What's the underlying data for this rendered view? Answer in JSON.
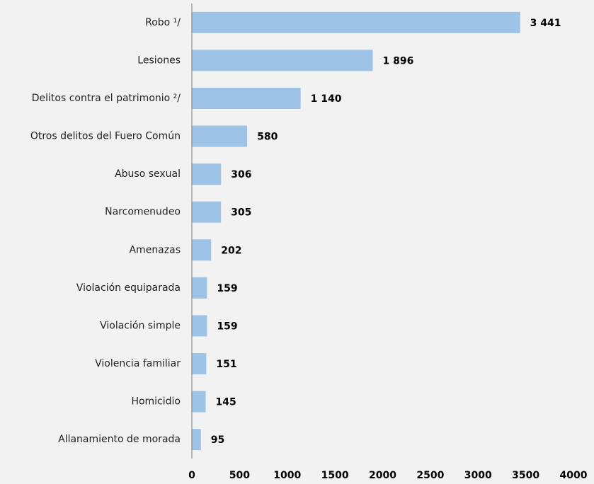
{
  "chart_data": {
    "type": "hbar",
    "categories": [
      "Robo ¹/",
      "Lesiones",
      "Delitos contra el patrimonio ²/",
      "Otros delitos del Fuero Común",
      "Abuso sexual",
      "Narcomenudeo",
      "Amenazas",
      "Violación equiparada",
      "Violación simple",
      "Violencia familiar",
      "Homicidio",
      "Allanamiento de morada"
    ],
    "values": [
      3441,
      1896,
      1140,
      580,
      306,
      305,
      202,
      159,
      159,
      151,
      145,
      95
    ],
    "value_labels": [
      "3 441",
      "1 896",
      "1 140",
      "580",
      "306",
      "305",
      "202",
      "159",
      "159",
      "151",
      "145",
      "95"
    ],
    "color": "#9dc3e6",
    "xlim": [
      0,
      4000
    ],
    "xticks": [
      0,
      500,
      1000,
      1500,
      2000,
      2500,
      3000,
      3500,
      4000
    ],
    "grid": false
  }
}
